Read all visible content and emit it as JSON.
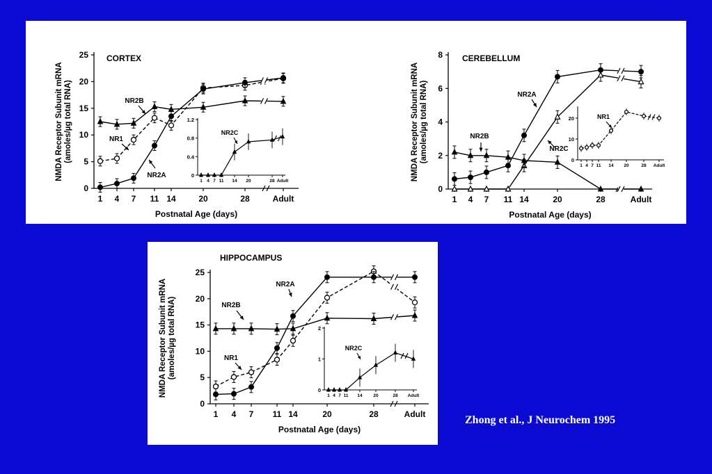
{
  "colors": {
    "slide_background": "#0a0ad2",
    "panel_background": "#ffffff",
    "citation_text": "#ffffff",
    "ink": "#000000"
  },
  "citation": "Zhong et al., J Neurochem 1995",
  "chart_data": [
    {
      "type": "line",
      "title": "CORTEX",
      "ylabel_line1": "NMDA Receptor Subunit mRNA",
      "ylabel_line2": "(amoles/µg total RNA)",
      "xlabel": "Postnatal Age (days)",
      "x_ticks": [
        "1",
        "4",
        "7",
        "11",
        "14",
        "20",
        "28",
        "Adult"
      ],
      "ylim": [
        0,
        25
      ],
      "y_ticks": [
        0,
        5,
        10,
        15,
        20,
        25
      ],
      "series": [
        {
          "name": "NR2B",
          "marker": "filled-triangle",
          "dash": false,
          "values": [
            12.5,
            12,
            12.2,
            15.3,
            14.8,
            15.2,
            16.4,
            16.3
          ]
        },
        {
          "name": "NR1",
          "marker": "open-circle",
          "dash": true,
          "values": [
            5.1,
            5.6,
            9.1,
            13.2,
            11.8,
            18.8,
            19.3,
            20.6
          ]
        },
        {
          "name": "NR2A",
          "marker": "filled-circle",
          "dash": false,
          "values": [
            0.2,
            0.9,
            1.9,
            8,
            13.5,
            18.6,
            19.8,
            20.7
          ]
        }
      ],
      "inset": {
        "series_name": "NR2C",
        "ylim": [
          0,
          1.2
        ],
        "y_ticks": [
          "0",
          "0.4",
          "0.8",
          "1.2"
        ],
        "x_ticks": [
          "1",
          "4",
          "7",
          "11",
          "14",
          "20",
          "28",
          "Adult"
        ],
        "values": [
          0,
          0,
          0,
          0,
          0.5,
          0.72,
          0.76,
          0.83
        ]
      }
    },
    {
      "type": "line",
      "title": "CEREBELLUM",
      "ylabel_line1": "NMDA Receptor Subunit mRNA",
      "ylabel_line2": "(amoles/µg total RNA)",
      "xlabel": "Postnatal Age (days)",
      "x_ticks": [
        "1",
        "4",
        "7",
        "11",
        "14",
        "20",
        "28",
        "Adult"
      ],
      "ylim": [
        0,
        8
      ],
      "y_ticks": [
        0,
        2,
        4,
        6,
        8
      ],
      "series": [
        {
          "name": "NR2A",
          "marker": "filled-circle",
          "dash": false,
          "values": [
            0.6,
            0.7,
            1,
            1.4,
            3.2,
            6.7,
            7.1,
            7
          ]
        },
        {
          "name": "NR2C",
          "marker": "open-triangle",
          "dash": false,
          "values": [
            0,
            0,
            0,
            0,
            1.4,
            4.3,
            6.8,
            6.4
          ]
        },
        {
          "name": "NR2B",
          "marker": "filled-triangle",
          "dash": false,
          "values": [
            2.2,
            2,
            2,
            1.9,
            1.7,
            1.6,
            0,
            0
          ]
        }
      ],
      "inset": {
        "series_name": "NR1",
        "ylim": [
          0,
          25
        ],
        "y_ticks": [
          "0",
          "10",
          "20"
        ],
        "x_ticks": [
          "1",
          "4",
          "7",
          "11",
          "14",
          "20",
          "28",
          "Adult"
        ],
        "values": [
          5.5,
          6,
          7,
          7,
          14,
          23,
          21,
          20
        ]
      }
    },
    {
      "type": "line",
      "title": "HIPPOCAMPUS",
      "ylabel_line1": "NMDA Receptor Subunit mRNA",
      "ylabel_line2": "(amoles/µg total RNA)",
      "xlabel": "Postnatal Age (days)",
      "x_ticks": [
        "1",
        "4",
        "7",
        "11",
        "14",
        "20",
        "28",
        "Adult"
      ],
      "ylim": [
        0,
        25
      ],
      "y_ticks": [
        0,
        5,
        10,
        15,
        20,
        25
      ],
      "series": [
        {
          "name": "NR2B",
          "marker": "filled-triangle",
          "dash": false,
          "values": [
            14.3,
            14.3,
            14.3,
            14.2,
            14.3,
            16.3,
            16.2,
            16.8
          ]
        },
        {
          "name": "NR1",
          "marker": "open-circle",
          "dash": true,
          "values": [
            3.3,
            5.1,
            6,
            8.4,
            12,
            20.2,
            25.2,
            19.3
          ]
        },
        {
          "name": "NR2A",
          "marker": "filled-circle",
          "dash": false,
          "values": [
            1.8,
            1.9,
            3.2,
            10.6,
            16.7,
            24.1,
            24.1,
            24.1
          ]
        }
      ],
      "inset": {
        "series_name": "NR2C",
        "ylim": [
          0,
          2
        ],
        "y_ticks": [
          "0",
          "1",
          "2"
        ],
        "x_ticks": [
          "1",
          "4",
          "7",
          "11",
          "14",
          "20",
          "28",
          "Adult"
        ],
        "values": [
          0,
          0,
          0,
          0,
          0.4,
          0.8,
          1.2,
          1
        ]
      }
    }
  ]
}
